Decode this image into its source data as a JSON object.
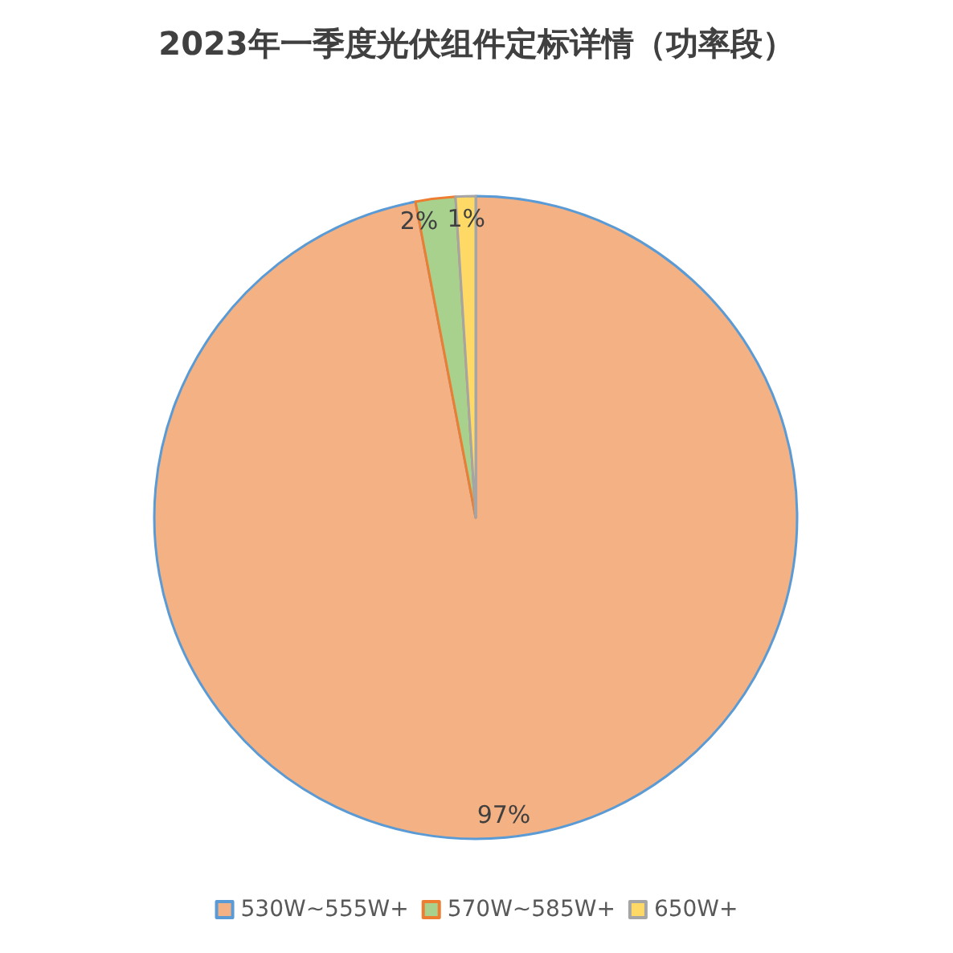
{
  "chart_data": {
    "type": "pie",
    "title": "2023年一季度光伏组件定标详情（功率段）",
    "categories": [
      "530W~555W+",
      "570W~585W+",
      "650W+"
    ],
    "values": [
      97,
      2,
      1
    ],
    "colors": [
      "#f4b183",
      "#a9d18e",
      "#ffd966"
    ],
    "legend": "bottom",
    "value_labels": [
      "97%",
      "2%",
      "1%"
    ]
  }
}
